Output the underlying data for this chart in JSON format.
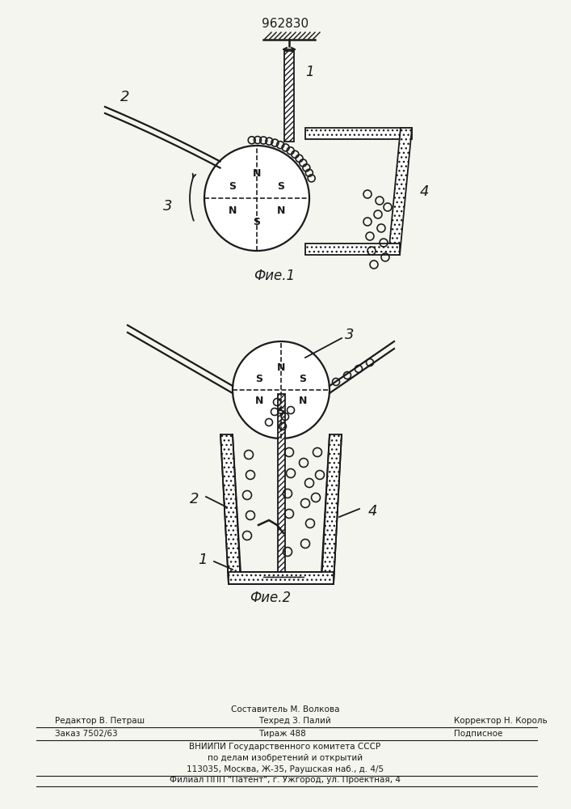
{
  "title": "962830",
  "fig1_label": "Фие.1",
  "fig2_label": "Фие.2",
  "bg_color": "#f5f5f0",
  "line_color": "#1a1a1a",
  "footer_lines": [
    "Составитель М. Волкова",
    "Редактор В. Петраш",
    "Техред З. Палий",
    "Корректор Н. Король",
    "Заказ 7502/63",
    "Тираж 488",
    "Подписное",
    "ВНИИПИ Государственного комитета СССР",
    "по делам изобретений и открытий",
    "113035, Москва, Ж-35, Раушская наб., д. 4/5",
    "Филиал ППП \"Патент\", г. Ужгород, ул. Проектная, 4"
  ]
}
